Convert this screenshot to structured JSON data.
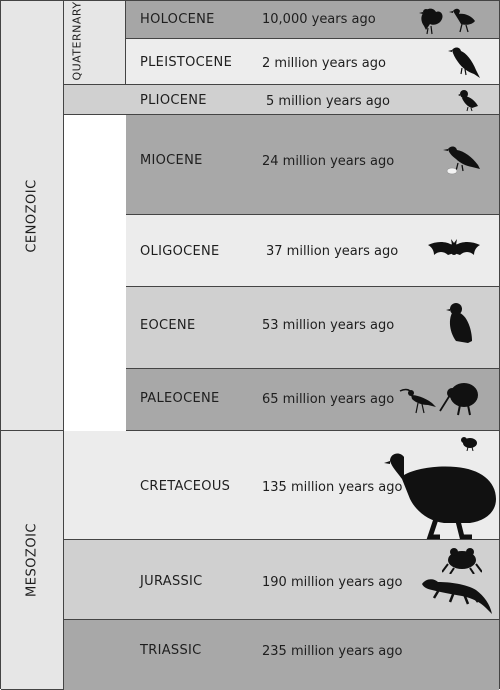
{
  "eras": [
    {
      "name": "CENOZOIC"
    },
    {
      "name": "MESOZOIC"
    }
  ],
  "subera": {
    "name": "QUATERNARY"
  },
  "periods": [
    {
      "name": "HOLOCENE",
      "date": "10,000 years ago",
      "shade": "#a6a6a6",
      "icons": [
        "fantail-bird-icon",
        "moa-small-bird-icon"
      ]
    },
    {
      "name": "PLEISTOCENE",
      "date": "2 million years ago",
      "shade": "#ededed",
      "icons": [
        "songbird-icon"
      ]
    },
    {
      "name": "PLIOCENE",
      "date": "5 million years ago",
      "shade": "#d0d0d0",
      "icons": [
        "small-bird-icon"
      ]
    },
    {
      "name": "MIOCENE",
      "date": "24 million years ago",
      "shade": "#a8a8a8",
      "icons": [
        "crow-with-egg-icon"
      ]
    },
    {
      "name": "OLIGOCENE",
      "date": "37 million years ago",
      "shade": "#ececec",
      "icons": [
        "bat-icon"
      ]
    },
    {
      "name": "EOCENE",
      "date": "53 million years ago",
      "shade": "#d0d0d0",
      "icons": [
        "penguin-icon"
      ]
    },
    {
      "name": "PALEOCENE",
      "date": "65 million years ago",
      "shade": "#a8a8a8",
      "icons": [
        "ibis-bird-icon",
        "kiwi-icon"
      ]
    },
    {
      "name": "CRETACEOUS",
      "date": "135 million years ago",
      "shade": "#ececec",
      "icons": [
        "moa-icon",
        "wren-icon"
      ]
    },
    {
      "name": "JURASSIC",
      "date": "190 million years ago",
      "shade": "#d0d0d0",
      "icons": [
        "frog-icon",
        "tuatara-icon"
      ]
    },
    {
      "name": "TRIASSIC",
      "date": "235 million years ago",
      "shade": "#a8a8a8",
      "icons": []
    }
  ]
}
